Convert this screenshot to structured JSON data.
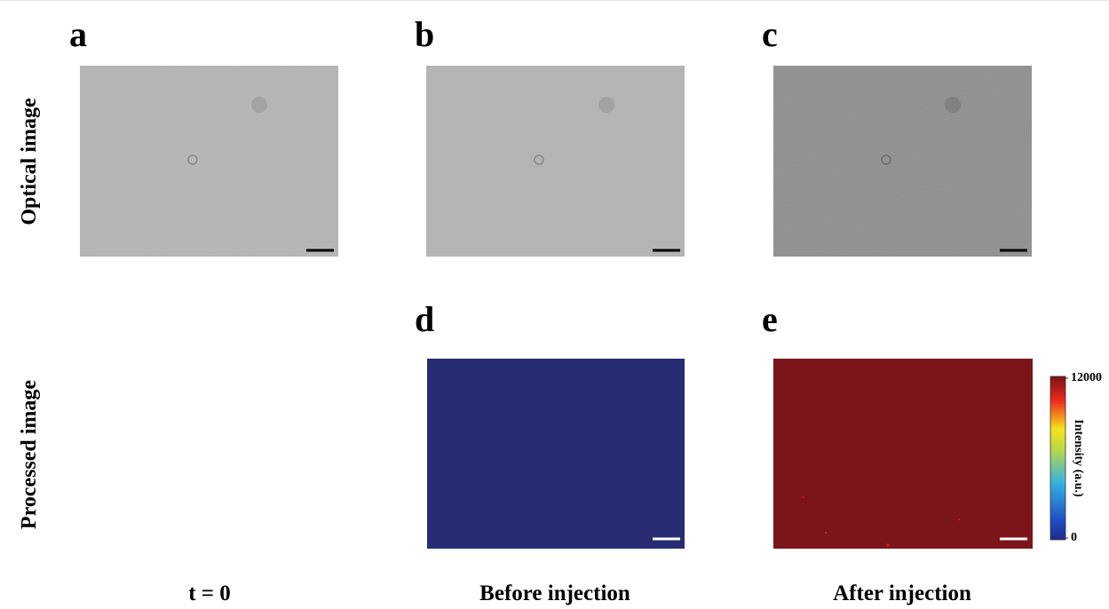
{
  "panels": [
    {
      "label": "a"
    },
    {
      "label": "b"
    },
    {
      "label": "c"
    },
    {
      "label": "d"
    },
    {
      "label": "e"
    }
  ],
  "rows": [
    "Optical image",
    "Processed image"
  ],
  "columns": [
    "t = 0",
    "Before injection",
    "After injection"
  ],
  "colorbar": {
    "label": "Intensity (a.u.)",
    "ticks": [
      0,
      12000
    ]
  }
}
